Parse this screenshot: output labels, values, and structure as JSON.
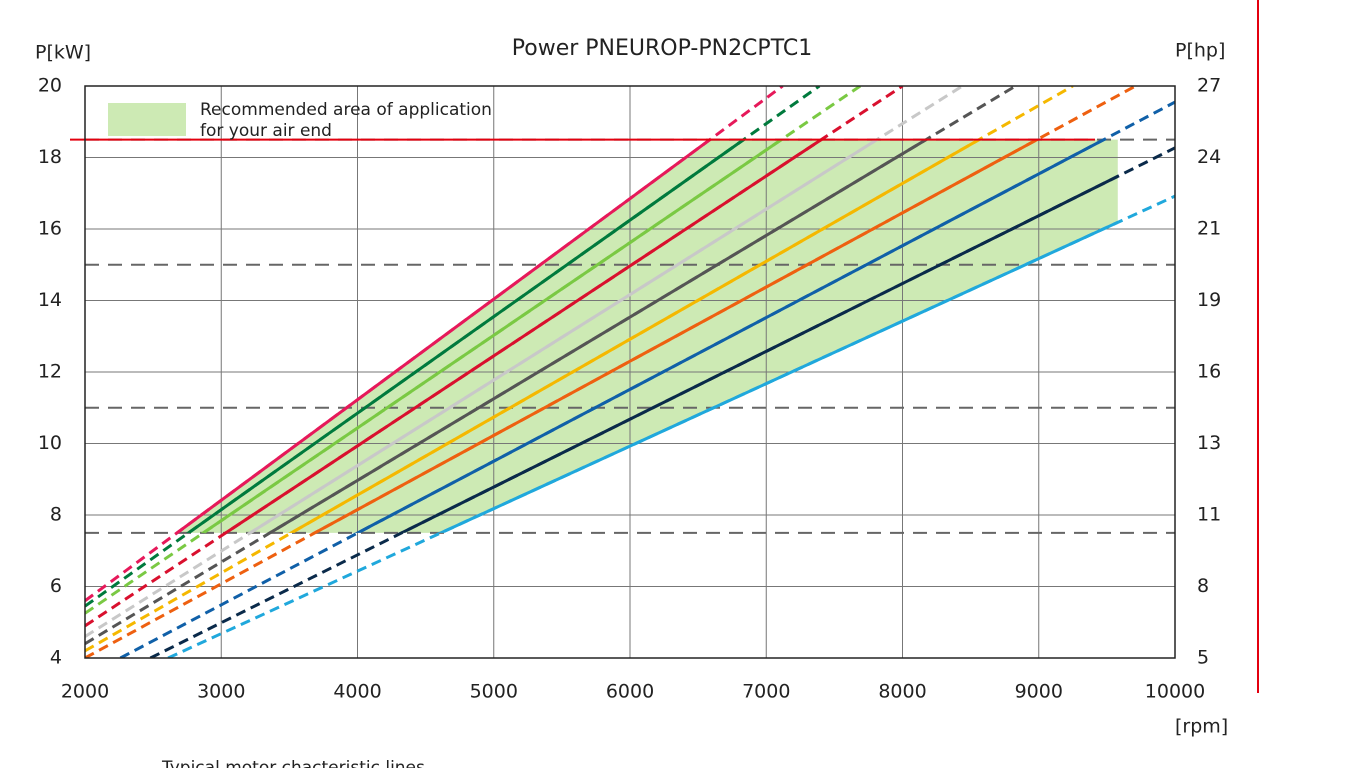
{
  "chart_data": {
    "type": "line",
    "title": "Power PNEUROP-PN2CPTC1",
    "ylabel": "P[kW]",
    "y2label": "P[hp]",
    "xlabel": "[rpm]",
    "caption": "Typical motor chacteristic lines",
    "xlim": [
      2000,
      10000
    ],
    "xticks": [
      2000,
      3000,
      4000,
      5000,
      6000,
      7000,
      8000,
      9000,
      10000
    ],
    "ylim": [
      4,
      20
    ],
    "yticks": [
      4,
      6,
      8,
      10,
      12,
      14,
      16,
      18,
      20
    ],
    "y2lim": [
      5.36,
      26.82
    ],
    "y2ticks": [
      {
        "value": 5.36,
        "label": "5"
      },
      {
        "value": 8.05,
        "label": "8"
      },
      {
        "value": 10.73,
        "label": "11"
      },
      {
        "value": 13.41,
        "label": "13"
      },
      {
        "value": 16.09,
        "label": "16"
      },
      {
        "value": 18.77,
        "label": "19"
      },
      {
        "value": 21.46,
        "label": "21"
      },
      {
        "value": 24.14,
        "label": "24"
      },
      {
        "value": 26.82,
        "label": "27"
      }
    ],
    "grid": true,
    "reference_lines": [
      7.5,
      11,
      15,
      18.5
    ],
    "limit_line": {
      "value": 18.5,
      "color": "#e3000f"
    },
    "recommended_area": {
      "ymin": 7.5,
      "ymax": 18.5,
      "xmax": 9580,
      "color": "#cdeab4",
      "label": [
        "Recommended area of application",
        "for  your air end"
      ]
    },
    "series": [
      {
        "color": "#e6195a",
        "x": [
          2000,
          7120
        ],
        "values": [
          5.6,
          20
        ]
      },
      {
        "color": "#007a3d",
        "x": [
          2000,
          7390
        ],
        "values": [
          5.45,
          20
        ]
      },
      {
        "color": "#7ac943",
        "x": [
          2000,
          7690
        ],
        "values": [
          5.25,
          20
        ]
      },
      {
        "color": "#d9102e",
        "x": [
          2000,
          8000
        ],
        "values": [
          4.9,
          20
        ]
      },
      {
        "color": "#c8c8c8",
        "x": [
          2000,
          8440
        ],
        "values": [
          4.6,
          20
        ]
      },
      {
        "color": "#555555",
        "x": [
          2000,
          8830
        ],
        "values": [
          4.4,
          20
        ]
      },
      {
        "color": "#f5b800",
        "x": [
          2000,
          9250
        ],
        "values": [
          4.2,
          20
        ]
      },
      {
        "color": "#ee6010",
        "x": [
          2000,
          9710
        ],
        "values": [
          4.0,
          20
        ]
      },
      {
        "color": "#1060a8",
        "x": [
          2260,
          10000
        ],
        "values": [
          4,
          19.55
        ]
      },
      {
        "color": "#0a2a4a",
        "x": [
          2480,
          10000
        ],
        "values": [
          4,
          18.27
        ]
      },
      {
        "color": "#20a8dc",
        "x": [
          2610,
          10000
        ],
        "values": [
          4,
          16.92
        ]
      }
    ]
  }
}
